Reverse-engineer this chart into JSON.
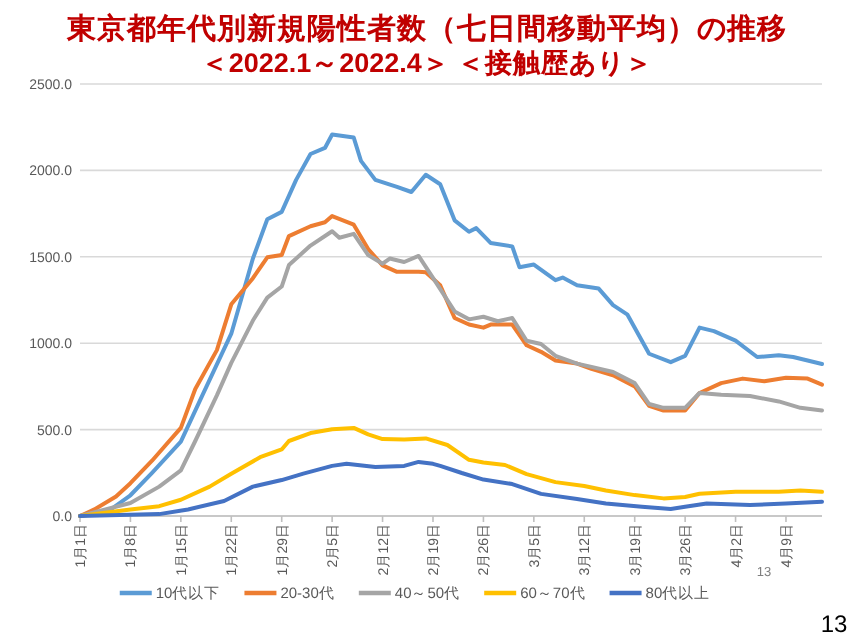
{
  "chart_data": {
    "type": "line",
    "title": "東京都年代別新規陽性者数（七日間移動平均）の推移",
    "subtitle": "＜2022.1～2022.4＞ ＜接触歴あり＞",
    "xlim": [
      "--01-01",
      "--04-14"
    ],
    "xticks": [
      {
        "value": "--01-01",
        "label": "1月1日"
      },
      {
        "value": "--01-08",
        "label": "1月8日"
      },
      {
        "value": "--01-15",
        "label": "1月15日"
      },
      {
        "value": "--01-22",
        "label": "1月22日"
      },
      {
        "value": "--01-29",
        "label": "1月29日"
      },
      {
        "value": "--02-05",
        "label": "2月5日"
      },
      {
        "value": "--02-12",
        "label": "2月12日"
      },
      {
        "value": "--02-19",
        "label": "2月19日"
      },
      {
        "value": "--02-26",
        "label": "2月26日"
      },
      {
        "value": "--03-05",
        "label": "3月5日"
      },
      {
        "value": "--03-12",
        "label": "3月12日"
      },
      {
        "value": "--03-19",
        "label": "3月19日"
      },
      {
        "value": "--03-26",
        "label": "3月26日"
      },
      {
        "value": "--04-02",
        "label": "4月2日"
      },
      {
        "value": "--04-09",
        "label": "4月9日"
      }
    ],
    "ylim": [
      0,
      2500
    ],
    "yticks": [
      {
        "value": 0,
        "label": "0.0"
      },
      {
        "value": 500,
        "label": "500.0"
      },
      {
        "value": 1000,
        "label": "1000.0"
      },
      {
        "value": 1500,
        "label": "1500.0"
      },
      {
        "value": 2000,
        "label": "2000.0"
      },
      {
        "value": 2500,
        "label": "2500.0"
      }
    ],
    "grid": "y",
    "legend": "bottom",
    "marker": "none",
    "line_style": "solid",
    "series": [
      {
        "name": "10代以下",
        "color": "#5b9bd5",
        "x": [
          "--01-01",
          "--01-05",
          "--01-08",
          "--01-11",
          "--01-15",
          "--01-18",
          "--01-22",
          "--01-25",
          "--01-27",
          "--01-29",
          "--01-31",
          "--02-02",
          "--02-04",
          "--02-05",
          "--02-08",
          "--02-09",
          "--02-11",
          "--02-14",
          "--02-16",
          "--02-18",
          "--02-20",
          "--02-22",
          "--02-24",
          "--02-25",
          "--02-27",
          "--03-02",
          "--03-03",
          "--03-05",
          "--03-08",
          "--03-09",
          "--03-11",
          "--03-14",
          "--03-16",
          "--03-18",
          "--03-21",
          "--03-24",
          "--03-26",
          "--03-28",
          "--03-30",
          "--04-02",
          "--04-05",
          "--04-08",
          "--04-10",
          "--04-14"
        ],
        "values": [
          0,
          30,
          120,
          250,
          430,
          700,
          1055,
          1490,
          1717,
          1760,
          1945,
          2095,
          2130,
          2208,
          2190,
          2055,
          1945,
          1905,
          1875,
          1975,
          1920,
          1711,
          1645,
          1666,
          1580,
          1560,
          1440,
          1455,
          1365,
          1380,
          1335,
          1316,
          1220,
          1165,
          939,
          890,
          927,
          1090,
          1070,
          1015,
          920,
          930,
          920,
          880
        ]
      },
      {
        "name": "20-30代",
        "color": "#ed7d31",
        "x": [
          "--01-01",
          "--01-03",
          "--01-06",
          "--01-08",
          "--01-11",
          "--01-13",
          "--01-15",
          "--01-17",
          "--01-20",
          "--01-22",
          "--01-25",
          "--01-27",
          "--01-29",
          "--01-30",
          "--02-02",
          "--02-04",
          "--02-05",
          "--02-08",
          "--02-10",
          "--02-12",
          "--02-14",
          "--02-17",
          "--02-18",
          "--02-20",
          "--02-22",
          "--02-24",
          "--02-26",
          "--02-27",
          "--03-02",
          "--03-04",
          "--03-06",
          "--03-08",
          "--03-11",
          "--03-13",
          "--03-16",
          "--03-19",
          "--03-21",
          "--03-23",
          "--03-26",
          "--03-28",
          "--03-31",
          "--04-03",
          "--04-06",
          "--04-09",
          "--04-12",
          "--04-14"
        ],
        "values": [
          0,
          38,
          113,
          190,
          320,
          415,
          510,
          735,
          960,
          1225,
          1376,
          1497,
          1510,
          1620,
          1677,
          1700,
          1736,
          1686,
          1545,
          1450,
          1413,
          1413,
          1410,
          1335,
          1146,
          1108,
          1090,
          1108,
          1108,
          988,
          950,
          900,
          882,
          852,
          814,
          750,
          637,
          610,
          610,
          712,
          769,
          795,
          780,
          800,
          795,
          760
        ]
      },
      {
        "name": "40～50代",
        "color": "#a5a5a5",
        "x": [
          "--01-01",
          "--01-08",
          "--01-12",
          "--01-15",
          "--01-17",
          "--01-20",
          "--01-22",
          "--01-25",
          "--01-27",
          "--01-29",
          "--01-30",
          "--02-02",
          "--02-05",
          "--02-06",
          "--02-08",
          "--02-10",
          "--02-12",
          "--02-13",
          "--02-15",
          "--02-17",
          "--02-19",
          "--02-22",
          "--02-24",
          "--02-26",
          "--02-28",
          "--03-02",
          "--03-04",
          "--03-06",
          "--03-08",
          "--03-11",
          "--03-13",
          "--03-16",
          "--03-19",
          "--03-21",
          "--03-23",
          "--03-26",
          "--03-28",
          "--03-31",
          "--04-04",
          "--04-08",
          "--04-11",
          "--04-14"
        ],
        "values": [
          0,
          75,
          170,
          264,
          434,
          698,
          886,
          1131,
          1264,
          1328,
          1452,
          1565,
          1648,
          1610,
          1633,
          1510,
          1460,
          1490,
          1470,
          1505,
          1378,
          1184,
          1138,
          1153,
          1127,
          1146,
          1014,
          995,
          927,
          882,
          863,
          833,
          769,
          648,
          626,
          626,
          712,
          701,
          694,
          663,
          626,
          610
        ]
      },
      {
        "name": "60～70代",
        "color": "#ffc000",
        "x": [
          "--01-01",
          "--01-08",
          "--01-12",
          "--01-15",
          "--01-19",
          "--01-22",
          "--01-26",
          "--01-29",
          "--01-30",
          "--02-02",
          "--02-05",
          "--02-08",
          "--02-10",
          "--02-12",
          "--02-15",
          "--02-18",
          "--02-21",
          "--02-24",
          "--02-26",
          "--03-01",
          "--03-04",
          "--03-08",
          "--03-12",
          "--03-15",
          "--03-19",
          "--03-23",
          "--03-26",
          "--03-28",
          "--04-02",
          "--04-08",
          "--04-11",
          "--04-14"
        ],
        "values": [
          0,
          38,
          57,
          94,
          170,
          245,
          340,
          385,
          434,
          480,
          502,
          510,
          472,
          445,
          442,
          449,
          411,
          325,
          310,
          295,
          242,
          196,
          174,
          148,
          121,
          102,
          110,
          129,
          140,
          140,
          148,
          140
        ]
      },
      {
        "name": "80代以上",
        "color": "#4472c4",
        "x": [
          "--01-01",
          "--01-12",
          "--01-16",
          "--01-21",
          "--01-25",
          "--01-29",
          "--02-01",
          "--02-05",
          "--02-07",
          "--02-11",
          "--02-15",
          "--02-17",
          "--02-19",
          "--02-20",
          "--02-23",
          "--02-26",
          "--03-02",
          "--03-06",
          "--03-11",
          "--03-15",
          "--03-20",
          "--03-24",
          "--03-26",
          "--03-29",
          "--04-04",
          "--04-09",
          "--04-14"
        ],
        "values": [
          0,
          11,
          38,
          87,
          170,
          208,
          245,
          290,
          302,
          283,
          290,
          313,
          302,
          290,
          249,
          211,
          185,
          128,
          98,
          72,
          53,
          41,
          53,
          72,
          64,
          72,
          83
        ]
      }
    ],
    "annotations": [
      "13",
      "13"
    ]
  }
}
